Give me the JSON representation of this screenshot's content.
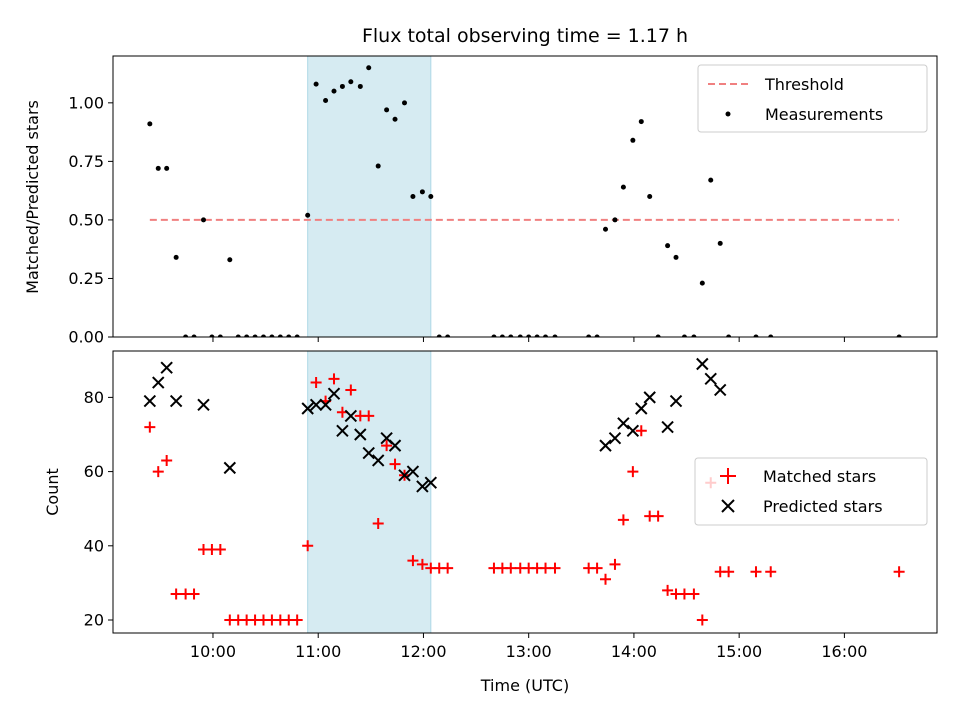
{
  "chart_data": {
    "title": "Flux total observing time = 1.17 h",
    "xlabel": "Time (UTC)",
    "x_units": "hours UTC",
    "xlim": [
      9.05,
      16.88
    ],
    "x_ticks": [
      {
        "value": 10,
        "label": "10:00"
      },
      {
        "value": 11,
        "label": "11:00"
      },
      {
        "value": 12,
        "label": "12:00"
      },
      {
        "value": 13,
        "label": "13:00"
      },
      {
        "value": 14,
        "label": "14:00"
      },
      {
        "value": 15,
        "label": "15:00"
      },
      {
        "value": 16,
        "label": "16:00"
      }
    ],
    "shaded_span": [
      10.9,
      12.07
    ],
    "colors": {
      "threshold": "#f08080",
      "measurements": "#000000",
      "matched": "#ff0000",
      "predicted": "#000000",
      "span": "#add8e6"
    },
    "top_panel": {
      "type": "scatter",
      "ylabel": "Matched/Predicted stars",
      "ylim": [
        0,
        1.2
      ],
      "y_ticks": [
        {
          "value": 0,
          "label": "0.00"
        },
        {
          "value": 0.25,
          "label": "0.25"
        },
        {
          "value": 0.5,
          "label": "0.50"
        },
        {
          "value": 0.75,
          "label": "0.75"
        },
        {
          "value": 1.0,
          "label": "1.00"
        }
      ],
      "threshold": {
        "name": "Threshold",
        "value": 0.5,
        "x": [
          9.4,
          16.52
        ]
      },
      "legend": [
        "Threshold",
        "Measurements"
      ],
      "measurements": {
        "name": "Measurements",
        "x": [
          9.4,
          9.48,
          9.56,
          9.65,
          9.74,
          9.82,
          9.91,
          9.99,
          10.07,
          10.16,
          10.24,
          10.32,
          10.4,
          10.48,
          10.56,
          10.64,
          10.72,
          10.8,
          10.9,
          10.98,
          11.07,
          11.15,
          11.23,
          11.31,
          11.4,
          11.48,
          11.57,
          11.65,
          11.73,
          11.82,
          11.9,
          11.99,
          12.07,
          12.15,
          12.23,
          12.67,
          12.75,
          12.83,
          12.92,
          13.0,
          13.08,
          13.16,
          13.25,
          13.57,
          13.65,
          13.73,
          13.82,
          13.9,
          13.99,
          14.07,
          14.15,
          14.23,
          14.32,
          14.4,
          14.48,
          14.57,
          14.65,
          14.73,
          14.82,
          14.9,
          15.16,
          15.3,
          16.52
        ],
        "y": [
          0.91,
          0.72,
          0.72,
          0.34,
          0,
          0,
          0.5,
          0,
          0,
          0.33,
          0,
          0,
          0,
          0,
          0,
          0,
          0,
          0,
          0.52,
          1.08,
          1.01,
          1.05,
          1.07,
          1.09,
          1.07,
          1.15,
          0.73,
          0.97,
          0.93,
          1.0,
          0.6,
          0.62,
          0.6,
          0,
          0,
          0,
          0,
          0,
          0,
          0,
          0,
          0,
          0,
          0,
          0,
          0.46,
          0.5,
          0.64,
          0.84,
          0.92,
          0.6,
          0,
          0.39,
          0.34,
          0,
          0,
          0.23,
          0.67,
          0.4,
          0,
          0,
          0,
          0
        ]
      }
    },
    "bottom_panel": {
      "type": "scatter",
      "ylabel": "Count",
      "ylim": [
        16.5,
        92.5
      ],
      "y_ticks": [
        {
          "value": 20,
          "label": "20"
        },
        {
          "value": 40,
          "label": "40"
        },
        {
          "value": 60,
          "label": "60"
        },
        {
          "value": 80,
          "label": "80"
        }
      ],
      "legend": [
        "Matched stars",
        "Predicted stars"
      ],
      "matched": {
        "name": "Matched stars",
        "x": [
          9.4,
          9.48,
          9.56,
          9.65,
          9.74,
          9.82,
          9.91,
          9.99,
          10.07,
          10.16,
          10.24,
          10.32,
          10.4,
          10.48,
          10.56,
          10.64,
          10.72,
          10.8,
          10.9,
          10.98,
          11.07,
          11.15,
          11.23,
          11.31,
          11.4,
          11.48,
          11.57,
          11.65,
          11.73,
          11.82,
          11.9,
          11.99,
          12.07,
          12.15,
          12.23,
          12.67,
          12.75,
          12.83,
          12.92,
          13.0,
          13.08,
          13.16,
          13.25,
          13.57,
          13.65,
          13.73,
          13.82,
          13.9,
          13.99,
          14.07,
          14.15,
          14.23,
          14.32,
          14.4,
          14.48,
          14.57,
          14.65,
          14.73,
          14.82,
          14.9,
          15.16,
          15.3,
          16.52
        ],
        "y": [
          72,
          60,
          63,
          27,
          27,
          27,
          39,
          39,
          39,
          20,
          20,
          20,
          20,
          20,
          20,
          20,
          20,
          20,
          40,
          84,
          79,
          85,
          76,
          82,
          75,
          75,
          46,
          67,
          62,
          59,
          36,
          35,
          34,
          34,
          34,
          34,
          34,
          34,
          34,
          34,
          34,
          34,
          34,
          34,
          34,
          31,
          35,
          47,
          60,
          71,
          48,
          48,
          28,
          27,
          27,
          27,
          20,
          57,
          33,
          33,
          33,
          33,
          33
        ]
      },
      "predicted": {
        "name": "Predicted stars",
        "x": [
          9.4,
          9.48,
          9.56,
          9.65,
          9.91,
          10.16,
          10.9,
          10.98,
          11.07,
          11.15,
          11.23,
          11.31,
          11.4,
          11.48,
          11.57,
          11.65,
          11.73,
          11.82,
          11.9,
          11.99,
          12.07,
          13.73,
          13.82,
          13.9,
          13.99,
          14.07,
          14.15,
          14.32,
          14.4,
          14.65,
          14.73,
          14.82
        ],
        "y": [
          79,
          84,
          88,
          79,
          78,
          61,
          77,
          78,
          78,
          81,
          71,
          75,
          70,
          65,
          63,
          69,
          67,
          59,
          60,
          56,
          57,
          67,
          69,
          73,
          71,
          77,
          80,
          72,
          79,
          89,
          85,
          82
        ]
      }
    }
  }
}
